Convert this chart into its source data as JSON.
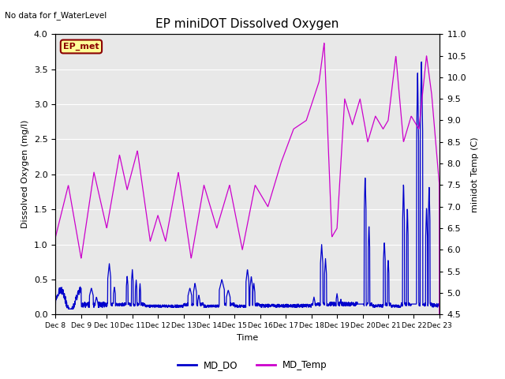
{
  "title": "EP miniDOT Dissolved Oxygen",
  "subtitle": "No data for f_WaterLevel",
  "xlabel": "Time",
  "ylabel_left": "Dissolved Oxygen (mg/l)",
  "ylabel_right": "minidot Temp (C)",
  "legend_labels": [
    "MD_DO",
    "MD_Temp"
  ],
  "do_color": "#0000cc",
  "temp_color": "#cc00cc",
  "ylim_left": [
    0.0,
    4.0
  ],
  "ylim_right": [
    4.5,
    11.0
  ],
  "xtick_labels": [
    "Dec 8",
    "Dec 9",
    "Dec 10",
    "Dec 11",
    "Dec 12",
    "Dec 13",
    "Dec 14",
    "Dec 15",
    "Dec 16",
    "Dec 17",
    "Dec 18",
    "Dec 19",
    "Dec 20",
    "Dec 21",
    "Dec 22",
    "Dec 23"
  ],
  "bg_color": "#e8e8e8",
  "ep_met_label": "EP_met",
  "ep_met_bg": "#ffff99",
  "ep_met_border": "#8b0000"
}
